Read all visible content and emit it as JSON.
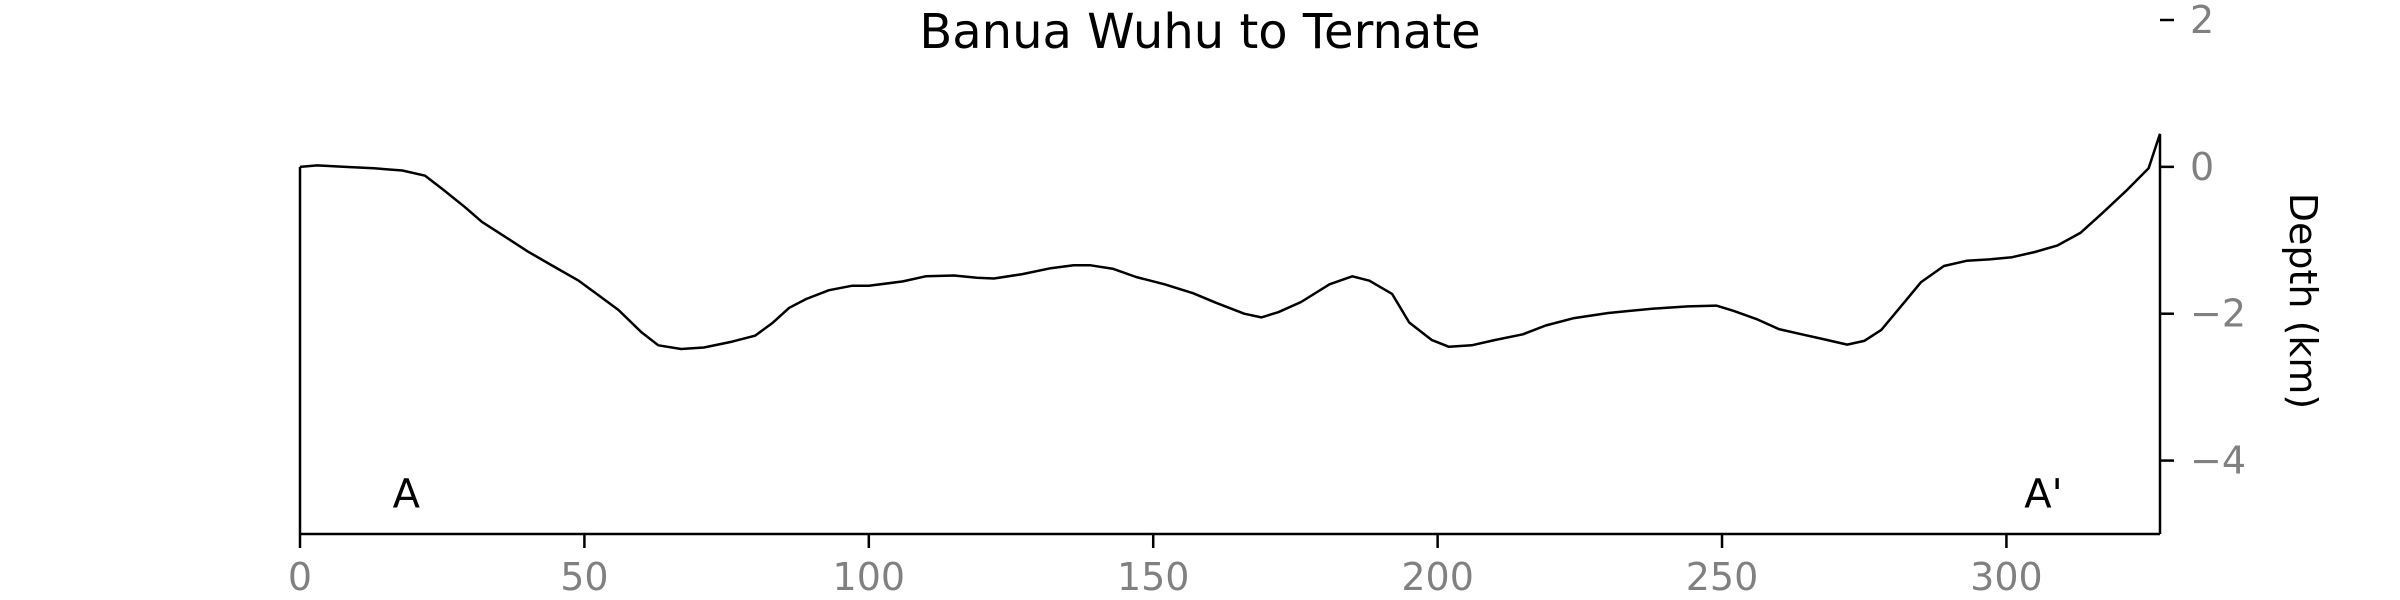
{
  "chart_data": {
    "type": "line",
    "title": "Banua Wuhu to Ternate",
    "xlabel": "",
    "ylabel": "Depth (km)",
    "xlim": [
      0,
      327
    ],
    "ylim": [
      -5,
      2
    ],
    "x_ticks": [
      0,
      50,
      100,
      150,
      200,
      250,
      300
    ],
    "y_ticks": [
      2,
      0,
      -2,
      -4
    ],
    "tick_labels": {
      "x": [
        "0",
        "50",
        "100",
        "150",
        "200",
        "250",
        "300"
      ],
      "y": [
        "2",
        "0",
        "−2",
        "−4"
      ]
    },
    "grid": false,
    "annotations": [
      {
        "text": "A",
        "x": 18.7,
        "y": -4.45
      },
      {
        "text": "A'",
        "x": 306.5,
        "y": -4.45
      }
    ],
    "series": [
      {
        "x": [
          0,
          3,
          8,
          13,
          18,
          22,
          25,
          29,
          32,
          36,
          40,
          44,
          49,
          52,
          56,
          60,
          63,
          67,
          71,
          76,
          80,
          83,
          86,
          89,
          93,
          97,
          100,
          106,
          110,
          115,
          119,
          122,
          127,
          132,
          136,
          139,
          143,
          147,
          152,
          157,
          161,
          166,
          169,
          172,
          176,
          181,
          185,
          188,
          192,
          195,
          199,
          202,
          206,
          210,
          215,
          219,
          224,
          230,
          234,
          238,
          244,
          249,
          252,
          256,
          260,
          264,
          268,
          272,
          275,
          278,
          282,
          285,
          289,
          293,
          297,
          301,
          305,
          309,
          313,
          317,
          321,
          325,
          327
        ],
        "y": [
          0.0,
          0.02,
          0.0,
          -0.02,
          -0.05,
          -0.12,
          -0.3,
          -0.55,
          -0.75,
          -0.95,
          -1.15,
          -1.33,
          -1.55,
          -1.72,
          -1.95,
          -2.25,
          -2.43,
          -2.48,
          -2.46,
          -2.38,
          -2.3,
          -2.13,
          -1.92,
          -1.8,
          -1.68,
          -1.62,
          -1.62,
          -1.56,
          -1.49,
          -1.48,
          -1.51,
          -1.52,
          -1.46,
          -1.38,
          -1.34,
          -1.34,
          -1.39,
          -1.5,
          -1.6,
          -1.72,
          -1.85,
          -2.0,
          -2.05,
          -1.98,
          -1.84,
          -1.6,
          -1.49,
          -1.55,
          -1.73,
          -2.12,
          -2.36,
          -2.45,
          -2.43,
          -2.36,
          -2.28,
          -2.16,
          -2.06,
          -1.99,
          -1.96,
          -1.93,
          -1.9,
          -1.89,
          -1.96,
          -2.07,
          -2.21,
          -2.28,
          -2.35,
          -2.42,
          -2.37,
          -2.22,
          -1.85,
          -1.57,
          -1.35,
          -1.28,
          -1.26,
          -1.23,
          -1.16,
          -1.07,
          -0.9,
          -0.62,
          -0.33,
          -0.02,
          0.45
        ]
      }
    ]
  }
}
